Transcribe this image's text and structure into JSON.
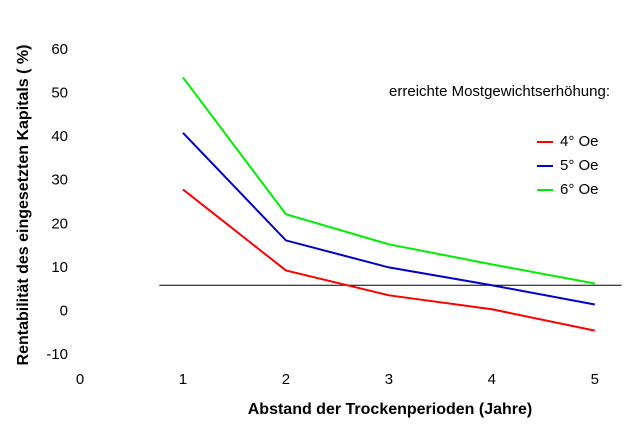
{
  "chart_data": {
    "type": "line",
    "x_label": "Abstand der Trockenperioden (Jahre)",
    "y_label": "Rentabilität des eingesetzten Kapitals ( %)",
    "legend_title": "erreichte Mostgewichtserhöhung:",
    "x": [
      1,
      2,
      3,
      4,
      5
    ],
    "series": [
      {
        "name": "4° Oe",
        "color": "#ff0000",
        "values": [
          28,
          9.4,
          3.7,
          0.5,
          -4.4
        ]
      },
      {
        "name": "5° Oe",
        "color": "#0000cc",
        "values": [
          41,
          16.3,
          10.1,
          6,
          1.6
        ]
      },
      {
        "name": "6° Oe",
        "color": "#00ee00",
        "values": [
          53.7,
          22.3,
          15.4,
          10.8,
          6.4
        ]
      }
    ],
    "reference_line": {
      "y": 6,
      "x": [
        0.77,
        5.26
      ],
      "color": "#000000"
    },
    "xlim": [
      0,
      5.4
    ],
    "xticks": [
      0,
      1,
      2,
      3,
      4,
      5
    ],
    "ylim": [
      -10,
      60
    ],
    "yticks": [
      -10,
      0,
      10,
      20,
      30,
      40,
      50,
      60
    ],
    "grid": false
  }
}
